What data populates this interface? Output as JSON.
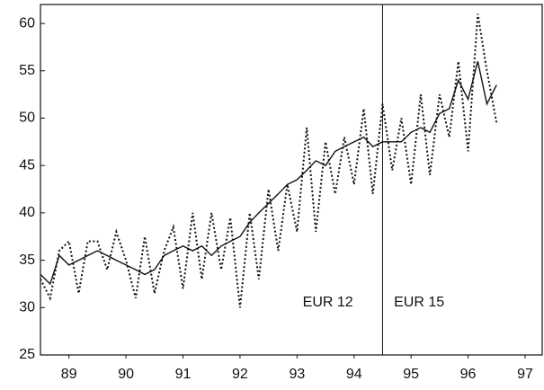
{
  "chart_data": {
    "type": "line",
    "x": [
      89,
      89.17,
      89.33,
      89.5,
      89.67,
      89.83,
      90,
      90.17,
      90.33,
      90.5,
      90.67,
      90.83,
      91,
      91.17,
      91.33,
      91.5,
      91.67,
      91.83,
      92,
      92.17,
      92.33,
      92.5,
      92.67,
      92.83,
      93,
      93.17,
      93.33,
      93.5,
      93.67,
      93.83,
      94,
      94.17,
      94.33,
      94.5,
      94.67,
      94.83,
      95,
      95.17,
      95.33,
      95.5,
      95.67,
      95.83,
      96,
      96.17,
      96.33,
      96.5,
      96.67,
      96.83,
      97
    ],
    "series": [
      {
        "color": "#111111",
        "style": "solid",
        "values": [
          33.5,
          32.5,
          35.5,
          34.5,
          35,
          35.5,
          36,
          35.5,
          35,
          34.5,
          34,
          33.5,
          34,
          35.5,
          36,
          36.5,
          36,
          36.5,
          35.5,
          36.5,
          37,
          37.5,
          39,
          40,
          41,
          42,
          43,
          43.5,
          44.5,
          45.5,
          45,
          46.5,
          47,
          47.5,
          48,
          47,
          47.5,
          47.5,
          47.5,
          48.5,
          49,
          48.5,
          50.5,
          51,
          54,
          52,
          56,
          51.5,
          53.5
        ]
      },
      {
        "color": "#111111",
        "style": "dotted",
        "values": [
          33,
          31,
          36,
          37,
          31.5,
          37,
          37,
          34,
          38,
          35,
          31,
          37.5,
          31.5,
          36,
          38.5,
          32,
          40,
          33,
          40,
          34,
          39.5,
          30,
          40,
          33,
          42.5,
          36,
          43,
          38,
          49,
          38,
          47.5,
          42,
          48,
          43,
          51,
          42,
          51.5,
          44.5,
          50,
          43,
          52.5,
          44,
          52.5,
          48,
          56,
          46.5,
          61,
          55,
          49.5
        ]
      }
    ],
    "xlim": [
      89,
      97.8
    ],
    "xticks": [
      {
        "value": 89.5,
        "label": "89"
      },
      {
        "value": 90.5,
        "label": "90"
      },
      {
        "value": 91.5,
        "label": "91"
      },
      {
        "value": 92.5,
        "label": "92"
      },
      {
        "value": 93.5,
        "label": "93"
      },
      {
        "value": 94.5,
        "label": "94"
      },
      {
        "value": 95.5,
        "label": "95"
      },
      {
        "value": 96.5,
        "label": "96"
      },
      {
        "value": 97.5,
        "label": "97"
      }
    ],
    "ylim": [
      25,
      62
    ],
    "yticks": [
      25,
      30,
      35,
      40,
      45,
      50,
      55,
      60
    ],
    "divider_x": 95,
    "annotations": [
      {
        "text": "EUR 12",
        "x": 93.6,
        "y": 30.5
      },
      {
        "text": "EUR 15",
        "x": 95.2,
        "y": 30.5
      }
    ]
  }
}
